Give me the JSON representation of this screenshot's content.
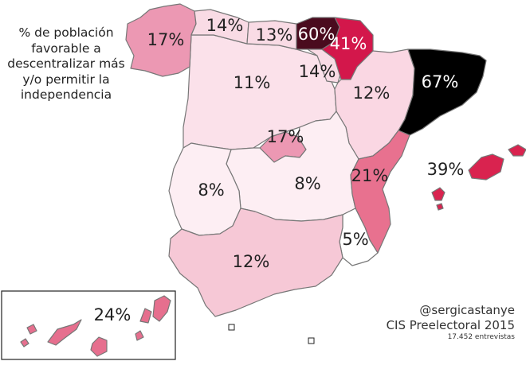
{
  "map": {
    "title": "% de población favorable a descentralizar más y/o permitir la independencia",
    "author": "@sergicastanye",
    "poll": "CIS Preelectoral 2015",
    "sample": "17.452 entrevistas",
    "regions": [
      {
        "name": "Galicia",
        "value": "17%",
        "color": "#ec98b3",
        "text_color": "#222222"
      },
      {
        "name": "Asturias",
        "value": "14%",
        "color": "#f9dbe5",
        "text_color": "#222222"
      },
      {
        "name": "Cantabria",
        "value": "13%",
        "color": "#f9dbe5",
        "text_color": "#222222"
      },
      {
        "name": "País Vasco",
        "value": "60%",
        "color": "#4a0b1e",
        "text_color": "#ffffff"
      },
      {
        "name": "Navarra",
        "value": "41%",
        "color": "#d3174b",
        "text_color": "#ffffff"
      },
      {
        "name": "La Rioja",
        "value": "14%",
        "color": "#f9dbe5",
        "text_color": "#222222"
      },
      {
        "name": "Castilla y León",
        "value": "11%",
        "color": "#fbe1ea",
        "text_color": "#222222"
      },
      {
        "name": "Aragón",
        "value": "12%",
        "color": "#fad7e3",
        "text_color": "#222222"
      },
      {
        "name": "Cataluña",
        "value": "67%",
        "color": "#000000",
        "text_color": "#ffffff"
      },
      {
        "name": "Madrid",
        "value": "17%",
        "color": "#ec98b3",
        "text_color": "#222222"
      },
      {
        "name": "Extremadura",
        "value": "8%",
        "color": "#fdeef3",
        "text_color": "#222222"
      },
      {
        "name": "Castilla-La Mancha",
        "value": "8%",
        "color": "#fdeef3",
        "text_color": "#222222"
      },
      {
        "name": "Comunidad Valenciana",
        "value": "21%",
        "color": "#e8718f",
        "text_color": "#222222"
      },
      {
        "name": "Islas Baleares",
        "value": "39%",
        "color": "#d9234f",
        "text_color": "#222222"
      },
      {
        "name": "Murcia",
        "value": "5%",
        "color": "#ffffff",
        "text_color": "#222222"
      },
      {
        "name": "Andalucía",
        "value": "12%",
        "color": "#f6c8d6",
        "text_color": "#222222"
      },
      {
        "name": "Canarias",
        "value": "24%",
        "color": "#e66f8e",
        "text_color": "#222222"
      }
    ]
  }
}
